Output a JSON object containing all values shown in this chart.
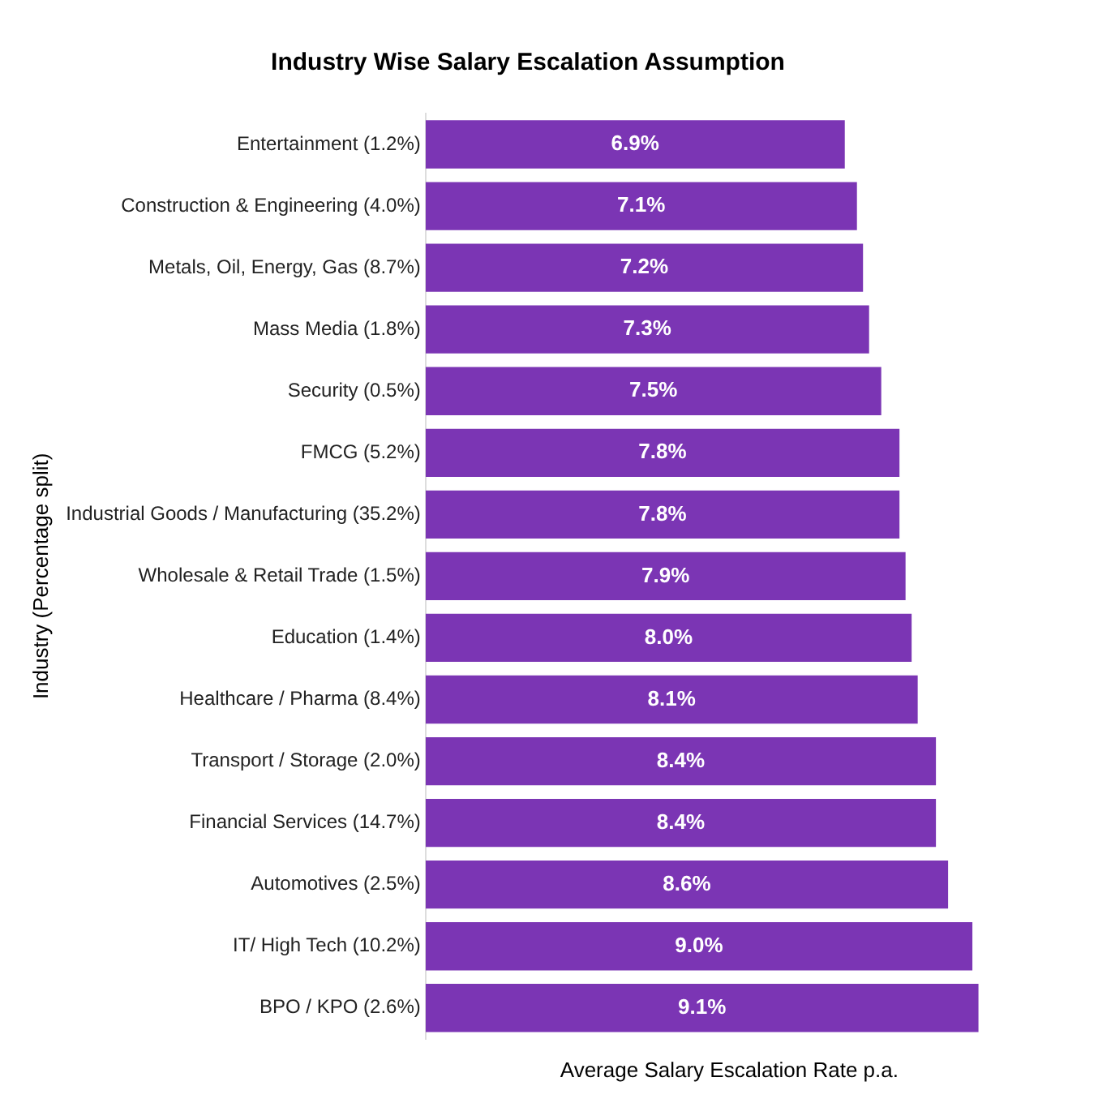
{
  "chart_data": {
    "type": "bar",
    "orientation": "horizontal",
    "title": "Industry Wise Salary Escalation Assumption",
    "xlabel": "Average Salary Escalation Rate p.a.",
    "ylabel": "Industry (Percentage split)",
    "categories": [
      "Entertainment (1.2%)",
      "Construction & Engineering (4.0%)",
      "Metals, Oil, Energy, Gas (8.7%)",
      "Mass Media (1.8%)",
      "Security (0.5%)",
      "FMCG (5.2%)",
      "Industrial Goods / Manufacturing (35.2%)",
      "Wholesale & Retail Trade (1.5%)",
      "Education (1.4%)",
      "Healthcare / Pharma (8.4%)",
      "Transport / Storage (2.0%)",
      "Financial Services (14.7%)",
      "Automotives (2.5%)",
      "IT/ High Tech (10.2%)",
      "BPO / KPO (2.6%)"
    ],
    "values": [
      6.9,
      7.1,
      7.2,
      7.3,
      7.5,
      7.8,
      7.8,
      7.9,
      8.0,
      8.1,
      8.4,
      8.4,
      8.6,
      9.0,
      9.1
    ],
    "value_labels": [
      "6.9%",
      "7.1%",
      "7.2%",
      "7.3%",
      "7.5%",
      "7.8%",
      "7.8%",
      "7.9%",
      "8.0%",
      "8.1%",
      "8.4%",
      "8.4%",
      "8.6%",
      "9.0%",
      "9.1%"
    ],
    "color": "#7b35b4",
    "grid": false,
    "legend": false,
    "tick_labels": "y"
  }
}
